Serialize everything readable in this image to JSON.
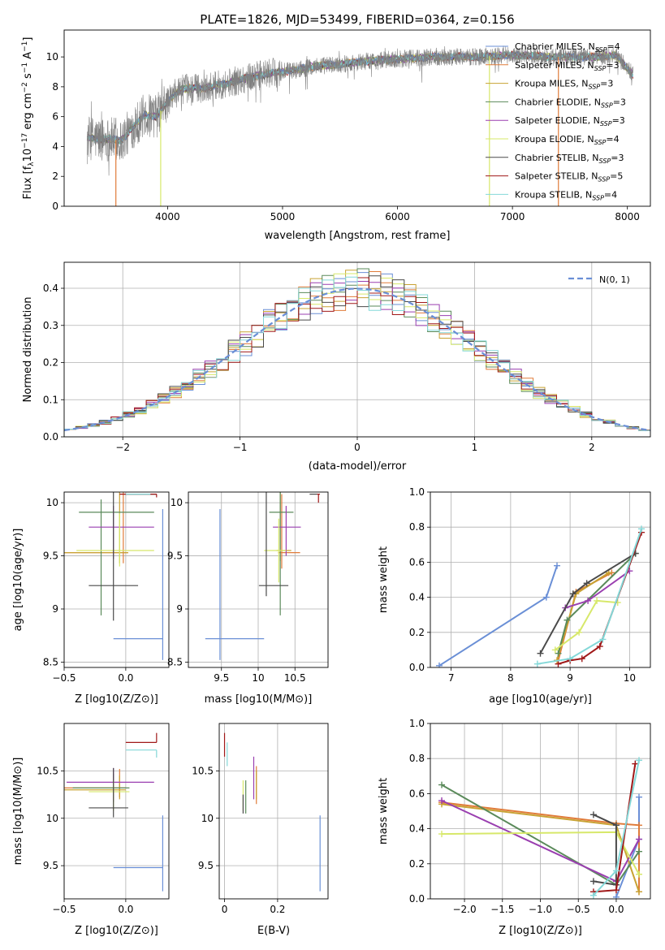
{
  "figure": {
    "title": "PLATE=1826, MJD=53499, FIBERID=0364, z=0.156"
  },
  "colors": {
    "data": "#808080",
    "models": [
      "#6a8fd6",
      "#e07b39",
      "#c8a233",
      "#5a8a5a",
      "#9a3fb0",
      "#d7e86a",
      "#4a4a4a",
      "#a01818",
      "#84d8d8"
    ]
  },
  "legend": [
    {
      "text": "Chabrier MILES, N",
      "sub": "SSP",
      "n": "=4"
    },
    {
      "text": "Salpeter MILES, N",
      "sub": "SSP",
      "n": "=3"
    },
    {
      "text": "Kroupa MILES, N",
      "sub": "SSP",
      "n": "=3"
    },
    {
      "text": "Chabrier ELODIE, N",
      "sub": "SSP",
      "n": "=3"
    },
    {
      "text": "Salpeter ELODIE, N",
      "sub": "SSP",
      "n": "=3"
    },
    {
      "text": "Kroupa ELODIE, N",
      "sub": "SSP",
      "n": "=4"
    },
    {
      "text": "Chabrier STELIB, N",
      "sub": "SSP",
      "n": "=3"
    },
    {
      "text": "Salpeter STELIB, N",
      "sub": "SSP",
      "n": "=5"
    },
    {
      "text": "Kroupa STELIB, N",
      "sub": "SSP",
      "n": "=4"
    }
  ],
  "chart_data": [
    {
      "type": "line",
      "panel": "spectrum",
      "xlabel": "wavelength [Angstrom, rest frame]",
      "ylabel": "Flux [f",
      "ylabel_parts": [
        "Flux [f",
        "λ",
        "10",
        "−17",
        " erg cm",
        "−2",
        " s",
        "−1",
        " A",
        "−1",
        "]"
      ],
      "xlim": [
        3100,
        8200
      ],
      "ylim": [
        0,
        11.8
      ],
      "xticks": [
        4000,
        5000,
        6000,
        7000,
        8000
      ],
      "yticks": [
        0,
        2,
        4,
        6,
        8,
        10
      ],
      "continuum_x": [
        3300,
        3400,
        3500,
        3600,
        3700,
        3800,
        3900,
        4000,
        4100,
        4200,
        4300,
        4500,
        4700,
        4900,
        5100,
        5300,
        5500,
        5700,
        5900,
        6100,
        6300,
        6500,
        6700,
        6900,
        7100,
        7300,
        7500,
        7700,
        7900,
        8050
      ],
      "continuum_y": [
        4.6,
        4.5,
        4.5,
        4.4,
        5.3,
        6.1,
        6.0,
        7.0,
        7.8,
        7.9,
        7.9,
        8.2,
        8.6,
        8.9,
        9.1,
        9.4,
        9.5,
        9.7,
        9.8,
        9.9,
        10.0,
        10.0,
        10.0,
        10.1,
        10.1,
        10.0,
        10.0,
        10.0,
        10.1,
        8.8
      ],
      "grid": false
    },
    {
      "type": "bar",
      "panel": "residual-histogram",
      "xlabel": "(data-model)/error",
      "ylabel": "Normed distribution",
      "xlim": [
        -2.5,
        2.5
      ],
      "ylim": [
        0,
        0.47
      ],
      "xticks": [
        -2,
        -1,
        0,
        1,
        2
      ],
      "xtick_labels": [
        "−2",
        "−1",
        "0",
        "1",
        "2"
      ],
      "yticks": [
        0.0,
        0.1,
        0.2,
        0.3,
        0.4
      ],
      "bin_width": 0.1,
      "n_bins": 50,
      "reference_label": "N(0, 1)",
      "reference_line": {
        "mean": 0,
        "sigma": 1,
        "style": "dashed"
      },
      "grid": true
    },
    {
      "type": "scatter",
      "panel": "age-vs-Z",
      "xlabel": "Z [log10(Z/Z⊙)]",
      "ylabel": "age  [log10(age/yr)]",
      "xlim": [
        -0.5,
        0.35
      ],
      "ylim": [
        8.45,
        10.1
      ],
      "xticks": [
        -0.5,
        0.0
      ],
      "xtick_labels": [
        "−0.5",
        "0.0"
      ],
      "yticks": [
        8.5,
        9.0,
        9.5,
        10.0
      ],
      "points": [
        {
          "x": 0.3,
          "y": 8.72,
          "xerr": [
            0.4,
            0.0
          ],
          "yerr": [
            0.2,
            1.22
          ],
          "c": 0
        },
        {
          "x": -0.02,
          "y": 9.53,
          "xerr": [
            0.48,
            0.04
          ],
          "yerr": [
            0.1,
            0.58
          ],
          "c": 1
        },
        {
          "x": -0.05,
          "y": 9.53,
          "xerr": [
            0.45,
            0.07
          ],
          "yerr": [
            0.1,
            0.58
          ],
          "c": 2
        },
        {
          "x": -0.2,
          "y": 9.91,
          "xerr": [
            0.18,
            0.43
          ],
          "yerr": [
            0.97,
            0.12
          ],
          "c": 3
        },
        {
          "x": -0.1,
          "y": 9.77,
          "xerr": [
            0.2,
            0.33
          ],
          "yerr": [
            0.3,
            0.2
          ],
          "c": 4
        },
        {
          "x": -0.05,
          "y": 9.55,
          "xerr": [
            0.35,
            0.28
          ],
          "yerr": [
            0.15,
            0.35
          ],
          "c": 5
        },
        {
          "x": -0.1,
          "y": 9.22,
          "xerr": [
            0.2,
            0.2
          ],
          "yerr": [
            0.33,
            0.88
          ],
          "c": 6
        },
        {
          "x": 0.0,
          "y": 10.08,
          "xerr": [
            0.0,
            0.25
          ],
          "yerr": [
            0.0,
            0.0
          ],
          "c": 6
        },
        {
          "x": 0.25,
          "y": 10.08,
          "xerr": [
            0.3,
            0.0
          ],
          "yerr": [
            0.03,
            0.0
          ],
          "c": 7
        },
        {
          "x": 0.0,
          "y": 10.08,
          "xerr": [
            0.0,
            0.2
          ],
          "yerr": [
            0.0,
            0.0
          ],
          "c": 8
        }
      ],
      "grid": true
    },
    {
      "type": "scatter",
      "panel": "age-vs-mass",
      "xlabel": "mass [log10(M/M⊙)]",
      "ylabel": "",
      "xlim": [
        9.05,
        10.95
      ],
      "ylim": [
        8.45,
        10.1
      ],
      "xticks": [
        9.5,
        10.0,
        10.5
      ],
      "yticks": [
        8.5,
        9.0,
        9.5,
        10.0
      ],
      "points": [
        {
          "x": 9.48,
          "y": 8.72,
          "xerr": [
            0.2,
            0.6
          ],
          "yerr": [
            0.2,
            1.22
          ],
          "c": 0
        },
        {
          "x": 10.32,
          "y": 9.53,
          "xerr": [
            0.05,
            0.25
          ],
          "yerr": [
            0.15,
            0.55
          ],
          "c": 1
        },
        {
          "x": 10.3,
          "y": 9.55,
          "xerr": [
            0.05,
            0.15
          ],
          "yerr": [
            0.1,
            0.55
          ],
          "c": 2
        },
        {
          "x": 10.3,
          "y": 9.91,
          "xerr": [
            0.15,
            0.18
          ],
          "yerr": [
            0.97,
            0.2
          ],
          "c": 3
        },
        {
          "x": 10.38,
          "y": 9.77,
          "xerr": [
            0.18,
            0.2
          ],
          "yerr": [
            0.27,
            0.2
          ],
          "c": 4
        },
        {
          "x": 10.28,
          "y": 9.55,
          "xerr": [
            0.2,
            0.1
          ],
          "yerr": [
            0.3,
            0.3
          ],
          "c": 5
        },
        {
          "x": 10.11,
          "y": 9.22,
          "xerr": [
            0.1,
            0.3
          ],
          "yerr": [
            0.1,
            0.88
          ],
          "c": 6
        },
        {
          "x": 10.8,
          "y": 10.08,
          "xerr": [
            0.1,
            0.0
          ],
          "yerr": [
            0.0,
            0.0
          ],
          "c": 6
        },
        {
          "x": 10.82,
          "y": 10.08,
          "xerr": [
            0.02,
            0.02
          ],
          "yerr": [
            0.08,
            0.0
          ],
          "c": 7
        },
        {
          "x": 10.75,
          "y": 10.08,
          "xerr": [
            0.0,
            0.0
          ],
          "yerr": [
            0.0,
            0.0
          ],
          "c": 8
        }
      ],
      "grid": true
    },
    {
      "type": "line",
      "panel": "mass-weight-vs-age",
      "xlabel": "age  [log10(age/yr)]",
      "ylabel": "mass weight",
      "xlim": [
        6.65,
        10.35
      ],
      "ylim": [
        0,
        1
      ],
      "xticks": [
        7,
        8,
        9,
        10
      ],
      "yticks": [
        0.0,
        0.2,
        0.4,
        0.6,
        0.8,
        1.0
      ],
      "series": [
        {
          "c": 0,
          "x": [
            6.8,
            8.6,
            8.78
          ],
          "y": [
            0.01,
            0.4,
            0.58
          ]
        },
        {
          "c": 1,
          "x": [
            8.8,
            9.1,
            9.7
          ],
          "y": [
            0.04,
            0.43,
            0.54
          ]
        },
        {
          "c": 2,
          "x": [
            8.78,
            9.1,
            9.65
          ],
          "y": [
            0.04,
            0.42,
            0.54
          ]
        },
        {
          "c": 3,
          "x": [
            8.8,
            8.95,
            10.1
          ],
          "y": [
            0.08,
            0.27,
            0.65
          ]
        },
        {
          "c": 4,
          "x": [
            8.92,
            9.3,
            10.0
          ],
          "y": [
            0.34,
            0.38,
            0.55
          ]
        },
        {
          "c": 5,
          "x": [
            8.75,
            9.15,
            9.45,
            9.8
          ],
          "y": [
            0.1,
            0.2,
            0.38,
            0.37
          ]
        },
        {
          "c": 6,
          "x": [
            8.5,
            9.05,
            9.28,
            10.1
          ],
          "y": [
            0.08,
            0.42,
            0.48,
            0.65
          ]
        },
        {
          "c": 7,
          "x": [
            8.8,
            9.0,
            9.2,
            9.5,
            10.2
          ],
          "y": [
            0.02,
            0.04,
            0.05,
            0.12,
            0.77
          ]
        },
        {
          "c": 8,
          "x": [
            8.45,
            9.0,
            9.55,
            10.2
          ],
          "y": [
            0.02,
            0.05,
            0.16,
            0.79
          ]
        }
      ],
      "grid": true
    },
    {
      "type": "scatter",
      "panel": "mass-vs-Z",
      "xlabel": "Z [log10(Z/Z⊙)]",
      "ylabel": "mass [log10(M/M⊙)]",
      "xlim": [
        -0.5,
        0.35
      ],
      "ylim": [
        9.15,
        11.0
      ],
      "xticks": [
        -0.5,
        0.0
      ],
      "xtick_labels": [
        "−0.5",
        "0.0"
      ],
      "yticks": [
        9.5,
        10.0,
        10.5
      ],
      "points": [
        {
          "x": 0.3,
          "y": 9.48,
          "xerr": [
            0.4,
            0.0
          ],
          "yerr": [
            0.25,
            0.55
          ],
          "c": 0
        },
        {
          "x": -0.05,
          "y": 10.32,
          "xerr": [
            0.45,
            0.05
          ],
          "yerr": [
            0.1,
            0.2
          ],
          "c": 1
        },
        {
          "x": -0.05,
          "y": 10.3,
          "xerr": [
            0.45,
            0.05
          ],
          "yerr": [
            0.1,
            0.15
          ],
          "c": 2
        },
        {
          "x": -0.1,
          "y": 10.32,
          "xerr": [
            0.33,
            0.13
          ],
          "yerr": [
            0.15,
            0.15
          ],
          "c": 3
        },
        {
          "x": -0.1,
          "y": 10.38,
          "xerr": [
            0.38,
            0.33
          ],
          "yerr": [
            0.2,
            0.15
          ],
          "c": 4
        },
        {
          "x": -0.1,
          "y": 10.28,
          "xerr": [
            0.2,
            0.13
          ],
          "yerr": [
            0.2,
            0.12
          ],
          "c": 5
        },
        {
          "x": -0.1,
          "y": 10.11,
          "xerr": [
            0.2,
            0.12
          ],
          "yerr": [
            0.1,
            0.42
          ],
          "c": 6
        },
        {
          "x": 0.25,
          "y": 10.8,
          "xerr": [
            0.25,
            0.0
          ],
          "yerr": [
            0.0,
            0.1
          ],
          "c": 7
        },
        {
          "x": 0.25,
          "y": 10.72,
          "xerr": [
            0.25,
            0.0
          ],
          "yerr": [
            0.08,
            0.0
          ],
          "c": 8
        }
      ],
      "grid": true
    },
    {
      "type": "scatter",
      "panel": "mass-vs-EBV",
      "xlabel": "E(B-V)",
      "ylabel": "",
      "xlim": [
        -0.02,
        0.39
      ],
      "ylim": [
        9.15,
        11.0
      ],
      "xticks": [
        0.0,
        0.2
      ],
      "yticks": [
        9.5,
        10.0,
        10.5
      ],
      "points": [
        {
          "x": 0.36,
          "y": 9.48,
          "yerr": [
            0.25,
            0.55
          ],
          "c": 0
        },
        {
          "x": 0.12,
          "y": 10.35,
          "yerr": [
            0.2,
            0.2
          ],
          "c": 1
        },
        {
          "x": 0.12,
          "y": 10.3,
          "yerr": [
            0.1,
            0.2
          ],
          "c": 2
        },
        {
          "x": 0.08,
          "y": 10.3,
          "yerr": [
            0.25,
            0.1
          ],
          "c": 3
        },
        {
          "x": 0.11,
          "y": 10.4,
          "yerr": [
            0.2,
            0.25
          ],
          "c": 4
        },
        {
          "x": 0.07,
          "y": 10.3,
          "yerr": [
            0.22,
            0.1
          ],
          "c": 5
        },
        {
          "x": 0.07,
          "y": 10.15,
          "yerr": [
            0.1,
            0.1
          ],
          "c": 6
        },
        {
          "x": 0.0,
          "y": 10.75,
          "yerr": [
            0.1,
            0.15
          ],
          "c": 7
        },
        {
          "x": 0.01,
          "y": 10.65,
          "yerr": [
            0.1,
            0.15
          ],
          "c": 8
        }
      ],
      "grid": true
    },
    {
      "type": "line",
      "panel": "mass-weight-vs-Z",
      "xlabel": "Z [log10(Z/Z⊙)]",
      "ylabel": "mass weight",
      "xlim": [
        -2.45,
        0.45
      ],
      "ylim": [
        0,
        1
      ],
      "xticks": [
        -2.0,
        -1.5,
        -1.0,
        -0.5,
        0.0
      ],
      "xtick_labels": [
        "−2.0",
        "−1.5",
        "−1.0",
        "−0.5",
        "0.0"
      ],
      "yticks": [
        0.0,
        0.2,
        0.4,
        0.6,
        0.8,
        1.0
      ],
      "series": [
        {
          "c": 0,
          "x": [
            0.0,
            0.3,
            0.3
          ],
          "y": [
            0.01,
            0.34,
            0.58
          ]
        },
        {
          "c": 1,
          "x": [
            -2.3,
            0.0,
            0.3,
            0.3
          ],
          "y": [
            0.55,
            0.43,
            0.42,
            0.04
          ]
        },
        {
          "c": 2,
          "x": [
            -2.3,
            0.0,
            0.3
          ],
          "y": [
            0.54,
            0.42,
            0.04
          ]
        },
        {
          "c": 3,
          "x": [
            -2.3,
            0.0,
            0.3
          ],
          "y": [
            0.65,
            0.08,
            0.27
          ]
        },
        {
          "c": 4,
          "x": [
            -2.3,
            0.0,
            0.3
          ],
          "y": [
            0.56,
            0.1,
            0.34
          ]
        },
        {
          "c": 5,
          "x": [
            -2.3,
            0.0,
            0.3
          ],
          "y": [
            0.37,
            0.38,
            0.14
          ]
        },
        {
          "c": 6,
          "x": [
            -0.3,
            0.0,
            0.0,
            -0.3
          ],
          "y": [
            0.48,
            0.42,
            0.08,
            0.1
          ]
        },
        {
          "c": 7,
          "x": [
            -0.3,
            0.0,
            0.25
          ],
          "y": [
            0.04,
            0.05,
            0.77
          ]
        },
        {
          "c": 8,
          "x": [
            -0.3,
            0.0,
            0.3
          ],
          "y": [
            0.02,
            0.16,
            0.79
          ]
        }
      ],
      "grid": true
    }
  ]
}
